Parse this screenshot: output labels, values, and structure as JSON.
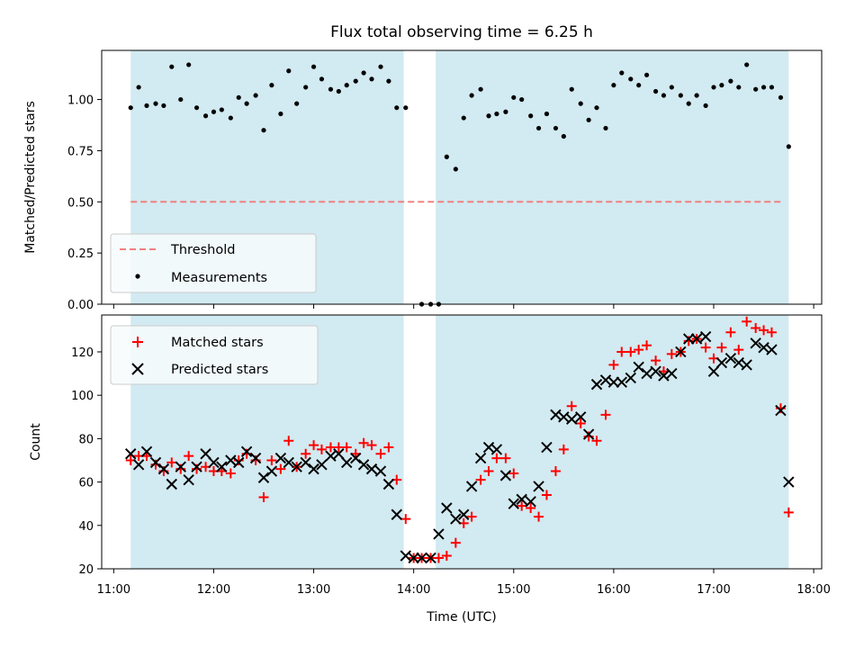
{
  "chart_data": [
    {
      "type": "scatter",
      "title": "Flux total observing time = 6.25 h",
      "xlabel": "",
      "ylabel": "Matched/Predicted stars",
      "ylim": [
        0,
        1.24
      ],
      "yticks": [
        0.0,
        0.25,
        0.5,
        0.75,
        1.0
      ],
      "ytick_labels": [
        "0.00",
        "0.25",
        "0.50",
        "0.75",
        "1.00"
      ],
      "xlim": [
        10.88,
        18.08
      ],
      "shaded_intervals": [
        [
          11.17,
          13.9
        ],
        [
          14.22,
          17.75
        ]
      ],
      "shade_color": "#add8e6",
      "threshold": {
        "name": "Threshold",
        "y": 0.5,
        "x": [
          11.17,
          17.7
        ],
        "color": "#f08080"
      },
      "legend": {
        "position": "lower-left",
        "entries": [
          "Threshold",
          "Measurements"
        ]
      },
      "series": [
        {
          "name": "Measurements",
          "color": "#000000",
          "marker": "dot",
          "x": [
            11.17,
            11.25,
            11.33,
            11.42,
            11.5,
            11.58,
            11.67,
            11.75,
            11.83,
            11.92,
            12.0,
            12.08,
            12.17,
            12.25,
            12.33,
            12.42,
            12.5,
            12.58,
            12.67,
            12.75,
            12.83,
            12.92,
            13.0,
            13.08,
            13.17,
            13.25,
            13.33,
            13.42,
            13.5,
            13.58,
            13.67,
            13.75,
            13.83,
            13.92,
            14.08,
            14.17,
            14.25,
            14.33,
            14.42,
            14.5,
            14.58,
            14.67,
            14.75,
            14.83,
            14.92,
            15.0,
            15.08,
            15.17,
            15.25,
            15.33,
            15.42,
            15.5,
            15.58,
            15.67,
            15.75,
            15.83,
            15.92,
            16.0,
            16.08,
            16.17,
            16.25,
            16.33,
            16.42,
            16.5,
            16.58,
            16.67,
            16.75,
            16.83,
            16.92,
            17.0,
            17.08,
            17.17,
            17.25,
            17.33,
            17.42,
            17.5,
            17.58,
            17.67,
            17.75
          ],
          "y": [
            0.96,
            1.06,
            0.97,
            0.98,
            0.97,
            1.16,
            1.0,
            1.17,
            0.96,
            0.92,
            0.94,
            0.95,
            0.91,
            1.01,
            0.98,
            1.02,
            0.85,
            1.07,
            0.93,
            1.14,
            0.98,
            1.06,
            1.16,
            1.1,
            1.05,
            1.04,
            1.07,
            1.09,
            1.13,
            1.1,
            1.16,
            1.09,
            0.96,
            0.96,
            0.0,
            0.0,
            0.0,
            0.72,
            0.66,
            0.91,
            1.02,
            1.05,
            0.92,
            0.93,
            0.94,
            1.01,
            1.0,
            0.92,
            0.86,
            0.93,
            0.86,
            0.82,
            1.05,
            0.98,
            0.9,
            0.96,
            0.86,
            1.07,
            1.13,
            1.1,
            1.07,
            1.12,
            1.04,
            1.02,
            1.06,
            1.02,
            0.98,
            1.02,
            0.97,
            1.06,
            1.07,
            1.09,
            1.06,
            1.17,
            1.05,
            1.06,
            1.06,
            1.01,
            0.77
          ]
        }
      ]
    },
    {
      "type": "scatter",
      "title": "",
      "xlabel": "Time (UTC)",
      "ylabel": "Count",
      "ylim": [
        20,
        137
      ],
      "yticks": [
        20,
        40,
        60,
        80,
        100,
        120
      ],
      "ytick_labels": [
        "20",
        "40",
        "60",
        "80",
        "100",
        "120"
      ],
      "xlim": [
        10.88,
        18.08
      ],
      "xticks": [
        11,
        12,
        13,
        14,
        15,
        16,
        17,
        18
      ],
      "xtick_labels": [
        "11:00",
        "12:00",
        "13:00",
        "14:00",
        "15:00",
        "16:00",
        "17:00",
        "18:00"
      ],
      "shaded_intervals": [
        [
          11.17,
          13.9
        ],
        [
          14.22,
          17.75
        ]
      ],
      "shade_color": "#add8e6",
      "legend": {
        "position": "upper-left",
        "entries": [
          "Matched stars",
          "Predicted stars"
        ]
      },
      "series": [
        {
          "name": "Matched stars",
          "color": "#ff0000",
          "marker": "plus",
          "x": [
            11.17,
            11.25,
            11.33,
            11.42,
            11.5,
            11.58,
            11.67,
            11.75,
            11.83,
            11.92,
            12.0,
            12.08,
            12.17,
            12.25,
            12.33,
            12.42,
            12.5,
            12.58,
            12.67,
            12.75,
            12.83,
            12.92,
            13.0,
            13.08,
            13.17,
            13.25,
            13.33,
            13.42,
            13.5,
            13.58,
            13.67,
            13.75,
            13.83,
            13.92,
            14.0,
            14.08,
            14.17,
            14.25,
            14.33,
            14.42,
            14.5,
            14.58,
            14.67,
            14.75,
            14.83,
            14.92,
            15.0,
            15.08,
            15.17,
            15.25,
            15.33,
            15.42,
            15.5,
            15.58,
            15.67,
            15.75,
            15.83,
            15.92,
            16.0,
            16.08,
            16.17,
            16.25,
            16.33,
            16.42,
            16.5,
            16.58,
            16.67,
            16.75,
            16.83,
            16.92,
            17.0,
            17.08,
            17.17,
            17.25,
            17.33,
            17.42,
            17.5,
            17.58,
            17.67,
            17.75
          ],
          "y": [
            70,
            72,
            72,
            68,
            65,
            69,
            66,
            72,
            66,
            67,
            65,
            65,
            64,
            70,
            73,
            70,
            53,
            70,
            66,
            79,
            67,
            73,
            77,
            75,
            76,
            76,
            76,
            73,
            78,
            77,
            73,
            76,
            61,
            43,
            25,
            25,
            25,
            25,
            26,
            32,
            41,
            44,
            61,
            65,
            71,
            71,
            64,
            49,
            48,
            44,
            54,
            65,
            75,
            95,
            87,
            81,
            79,
            91,
            114,
            120,
            120,
            121,
            123,
            116,
            111,
            119,
            120,
            125,
            126,
            122,
            117,
            122,
            129,
            121,
            134,
            131,
            130,
            129,
            94,
            46
          ]
        },
        {
          "name": "Predicted stars",
          "color": "#000000",
          "marker": "x",
          "x": [
            11.17,
            11.25,
            11.33,
            11.42,
            11.5,
            11.58,
            11.67,
            11.75,
            11.83,
            11.92,
            12.0,
            12.08,
            12.17,
            12.25,
            12.33,
            12.42,
            12.5,
            12.58,
            12.67,
            12.75,
            12.83,
            12.92,
            13.0,
            13.08,
            13.17,
            13.25,
            13.33,
            13.42,
            13.5,
            13.58,
            13.67,
            13.75,
            13.83,
            13.92,
            14.0,
            14.08,
            14.17,
            14.25,
            14.33,
            14.42,
            14.5,
            14.58,
            14.67,
            14.75,
            14.83,
            14.92,
            15.0,
            15.08,
            15.17,
            15.25,
            15.33,
            15.42,
            15.5,
            15.58,
            15.67,
            15.75,
            15.83,
            15.92,
            16.0,
            16.08,
            16.17,
            16.25,
            16.33,
            16.42,
            16.5,
            16.58,
            16.67,
            16.75,
            16.83,
            16.92,
            17.0,
            17.08,
            17.17,
            17.25,
            17.33,
            17.42,
            17.5,
            17.58,
            17.67,
            17.75
          ],
          "y": [
            73,
            68,
            74,
            69,
            66,
            59,
            67,
            61,
            67,
            73,
            69,
            67,
            70,
            69,
            74,
            71,
            62,
            65,
            71,
            69,
            67,
            69,
            66,
            68,
            72,
            73,
            69,
            71,
            68,
            66,
            65,
            59,
            45,
            26,
            25,
            25,
            25,
            36,
            48,
            43,
            45,
            58,
            71,
            76,
            75,
            63,
            50,
            52,
            51,
            58,
            76,
            91,
            90,
            89,
            90,
            82,
            105,
            107,
            106,
            106,
            108,
            113,
            110,
            111,
            109,
            110,
            120,
            126,
            126,
            127,
            111,
            115,
            117,
            115,
            114,
            124,
            122,
            121,
            93,
            60
          ]
        }
      ]
    }
  ]
}
